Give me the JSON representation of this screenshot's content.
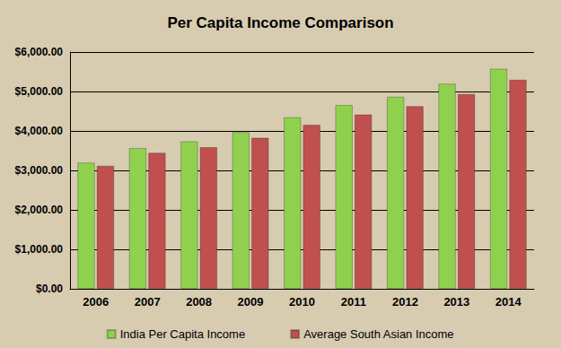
{
  "chart_data": {
    "type": "bar",
    "title": "Per Capita Income Comparison",
    "categories": [
      "2006",
      "2007",
      "2008",
      "2009",
      "2010",
      "2011",
      "2012",
      "2013",
      "2014"
    ],
    "series": [
      {
        "name": "India Per Capita Income",
        "color": "#8fd14f",
        "values": [
          3200,
          3570,
          3740,
          3970,
          4350,
          4660,
          4870,
          5200,
          5580
        ]
      },
      {
        "name": "Average South Asian Income",
        "color": "#c0504d",
        "values": [
          3120,
          3450,
          3590,
          3830,
          4160,
          4420,
          4630,
          4940,
          5300
        ]
      }
    ],
    "ylim": [
      0,
      6000
    ],
    "yticks": [
      {
        "value": 0,
        "label": "$0.00"
      },
      {
        "value": 1000,
        "label": "$1,000.00"
      },
      {
        "value": 2000,
        "label": "$2,000.00"
      },
      {
        "value": 3000,
        "label": "$3,000.00"
      },
      {
        "value": 4000,
        "label": "$4,000.00"
      },
      {
        "value": 5000,
        "label": "$5,000.00"
      },
      {
        "value": 6000,
        "label": "$6,000.00"
      }
    ],
    "grid": true,
    "legend": "bottom"
  }
}
